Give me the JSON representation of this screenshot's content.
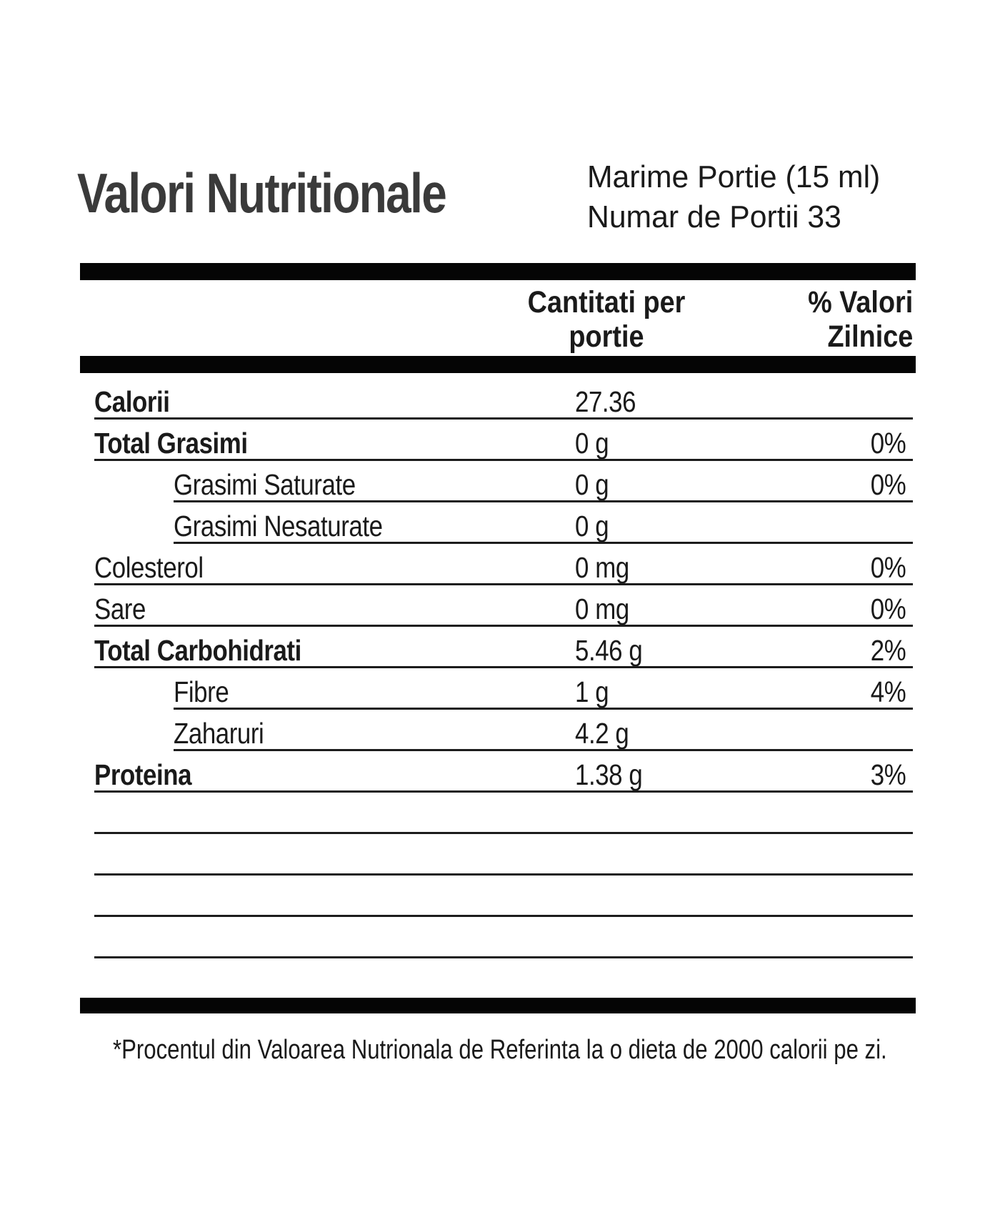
{
  "title": "Valori Nutritionale",
  "serving": {
    "size_label": "Marime Portie (15 ml)",
    "count_label": "Numar de Portii 33"
  },
  "table": {
    "amount_header": "Cantitati per\nportie",
    "dv_header": "% Valori\nZilnice",
    "rows": [
      {
        "label": "Calorii",
        "amount": "27.36",
        "dv": "",
        "bold": true,
        "indent": false
      },
      {
        "label": "Total Grasimi",
        "amount": "0 g",
        "dv": "0%",
        "bold": true,
        "indent": false
      },
      {
        "label": "Grasimi Saturate",
        "amount": "0 g",
        "dv": "0%",
        "bold": false,
        "indent": true
      },
      {
        "label": "Grasimi Nesaturate",
        "amount": "0 g",
        "dv": "",
        "bold": false,
        "indent": true
      },
      {
        "label": "Colesterol",
        "amount": "0 mg",
        "dv": "0%",
        "bold": false,
        "indent": false
      },
      {
        "label": "Sare",
        "amount": "0 mg",
        "dv": "0%",
        "bold": false,
        "indent": false
      },
      {
        "label": "Total Carbohidrati",
        "amount": "5.46 g",
        "dv": "2%",
        "bold": true,
        "indent": false
      },
      {
        "label": "Fibre",
        "amount": "1 g",
        "dv": "4%",
        "bold": false,
        "indent": true
      },
      {
        "label": "Zaharuri",
        "amount": "4.2 g",
        "dv": "",
        "bold": false,
        "indent": true
      },
      {
        "label": "Proteina",
        "amount": "1.38 g",
        "dv": "3%",
        "bold": true,
        "indent": false
      }
    ],
    "empty_row_count": 4
  },
  "footnote": "*Procentul din Valoarea Nutrionala de Referinta la o dieta de 2000 calorii pe zi.",
  "colors": {
    "text": "#1a1a1a",
    "title": "#3a3a3a",
    "bar": "#050505",
    "line": "#1c1c1c",
    "background": "#ffffff"
  }
}
